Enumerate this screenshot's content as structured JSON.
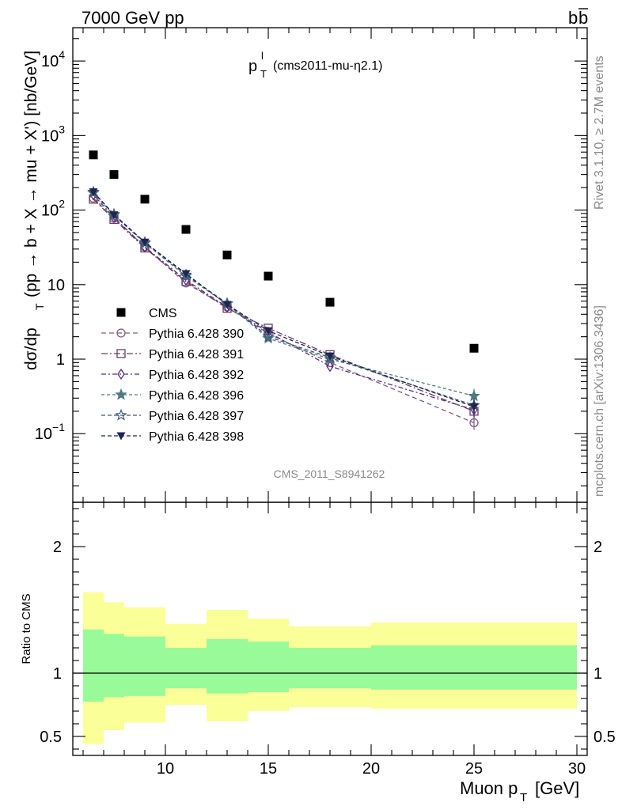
{
  "header": {
    "left": "7000 GeV pp",
    "right": "b",
    "right_bar": "b"
  },
  "side_labels": {
    "rivet": "Rivet 3.1.10, ≥ 2.7M events",
    "mcplots": "mcplots.cern.ch [arXiv:1306.3436]"
  },
  "chart_data": [
    {
      "type": "scatter",
      "title_main": "p",
      "title_sup": "l",
      "title_sub": "T",
      "title_rest": "(cms2011-mu-η2.1)",
      "watermark": "CMS_2011_S8941262",
      "ylabel": "dσ/dp",
      "ylabel_sub": "T",
      "ylabel_rest": "(pp → b + X → mu + X') [nb/GeV]",
      "yscale": "log",
      "xlim": [
        5.5,
        30.5
      ],
      "ylim": [
        0.012,
        28000
      ],
      "ytick_labels": [
        "10^-1",
        "1",
        "10",
        "10^2",
        "10^3",
        "10^4"
      ],
      "x": [
        6.5,
        7.5,
        9,
        11,
        13,
        15,
        18,
        25
      ],
      "legend_placement": "center-left",
      "series": [
        {
          "name": "CMS",
          "marker": "square",
          "color": "#000000",
          "values": [
            550,
            300,
            140,
            55,
            25,
            13,
            5.8,
            1.4
          ]
        },
        {
          "name": "Pythia 6.428 390",
          "marker": "circle-open",
          "dash": "6,4",
          "color": "#7d5a86",
          "values": [
            145,
            78,
            32,
            10.5,
            5.0,
            2.2,
            0.9,
            0.14
          ]
        },
        {
          "name": "Pythia 6.428 391",
          "marker": "square-open",
          "dash": "8,3,2,3",
          "color": "#6b3f5e",
          "values": [
            140,
            75,
            31,
            11,
            4.8,
            2.6,
            1.15,
            0.2
          ]
        },
        {
          "name": "Pythia 6.428 392",
          "marker": "diamond-open",
          "dash": "6,3,2,3",
          "color": "#5b2a82",
          "values": [
            160,
            80,
            32,
            11.5,
            5.0,
            2.3,
            0.8,
            0.21
          ]
        },
        {
          "name": "Pythia 6.428 396",
          "marker": "star-filled",
          "dash": "4,3",
          "color": "#4e7a80",
          "values": [
            170,
            85,
            36,
            13,
            5.5,
            1.9,
            1.0,
            0.32
          ]
        },
        {
          "name": "Pythia 6.428 397",
          "marker": "star-open",
          "dash": "5,3",
          "color": "#3f5a78",
          "values": [
            175,
            88,
            37,
            13.5,
            5.6,
            2.0,
            1.05,
            0.24
          ]
        },
        {
          "name": "Pythia 6.428 398",
          "marker": "triangle-down",
          "dash": "5,3",
          "color": "#1e2750",
          "values": [
            175,
            86,
            37,
            14,
            5.4,
            2.4,
            1.1,
            0.23
          ]
        }
      ]
    },
    {
      "type": "area",
      "ylabel": "Ratio to CMS",
      "xlabel": "Muon p",
      "xlabel_sub": "T",
      "xlabel_rest": "[GeV]",
      "xlim": [
        5.5,
        30.5
      ],
      "ylim": [
        0.35,
        2.35
      ],
      "xtick_labels": [
        "10",
        "15",
        "20",
        "25",
        "30"
      ],
      "ytick_labels": [
        "0.5",
        "1",
        "2"
      ],
      "reference_line": 1,
      "bins": [
        {
          "lo": 6,
          "hi": 7,
          "inner": [
            0.775,
            1.345
          ],
          "outer": [
            0.44,
            1.64
          ]
        },
        {
          "lo": 7,
          "hi": 8,
          "inner": [
            0.81,
            1.31
          ],
          "outer": [
            0.55,
            1.56
          ]
        },
        {
          "lo": 8,
          "hi": 10,
          "inner": [
            0.82,
            1.29
          ],
          "outer": [
            0.61,
            1.52
          ]
        },
        {
          "lo": 10,
          "hi": 12,
          "inner": [
            0.88,
            1.2
          ],
          "outer": [
            0.75,
            1.39
          ]
        },
        {
          "lo": 12,
          "hi": 14,
          "inner": [
            0.84,
            1.27
          ],
          "outer": [
            0.62,
            1.5
          ]
        },
        {
          "lo": 14,
          "hi": 16,
          "inner": [
            0.85,
            1.25
          ],
          "outer": [
            0.7,
            1.43
          ]
        },
        {
          "lo": 16,
          "hi": 20,
          "inner": [
            0.88,
            1.2
          ],
          "outer": [
            0.73,
            1.37
          ]
        },
        {
          "lo": 20,
          "hi": 30,
          "inner": [
            0.87,
            1.22
          ],
          "outer": [
            0.72,
            1.4
          ]
        }
      ],
      "band_colors": {
        "inner": "#99fa99",
        "outer": "#fbff98"
      }
    }
  ]
}
